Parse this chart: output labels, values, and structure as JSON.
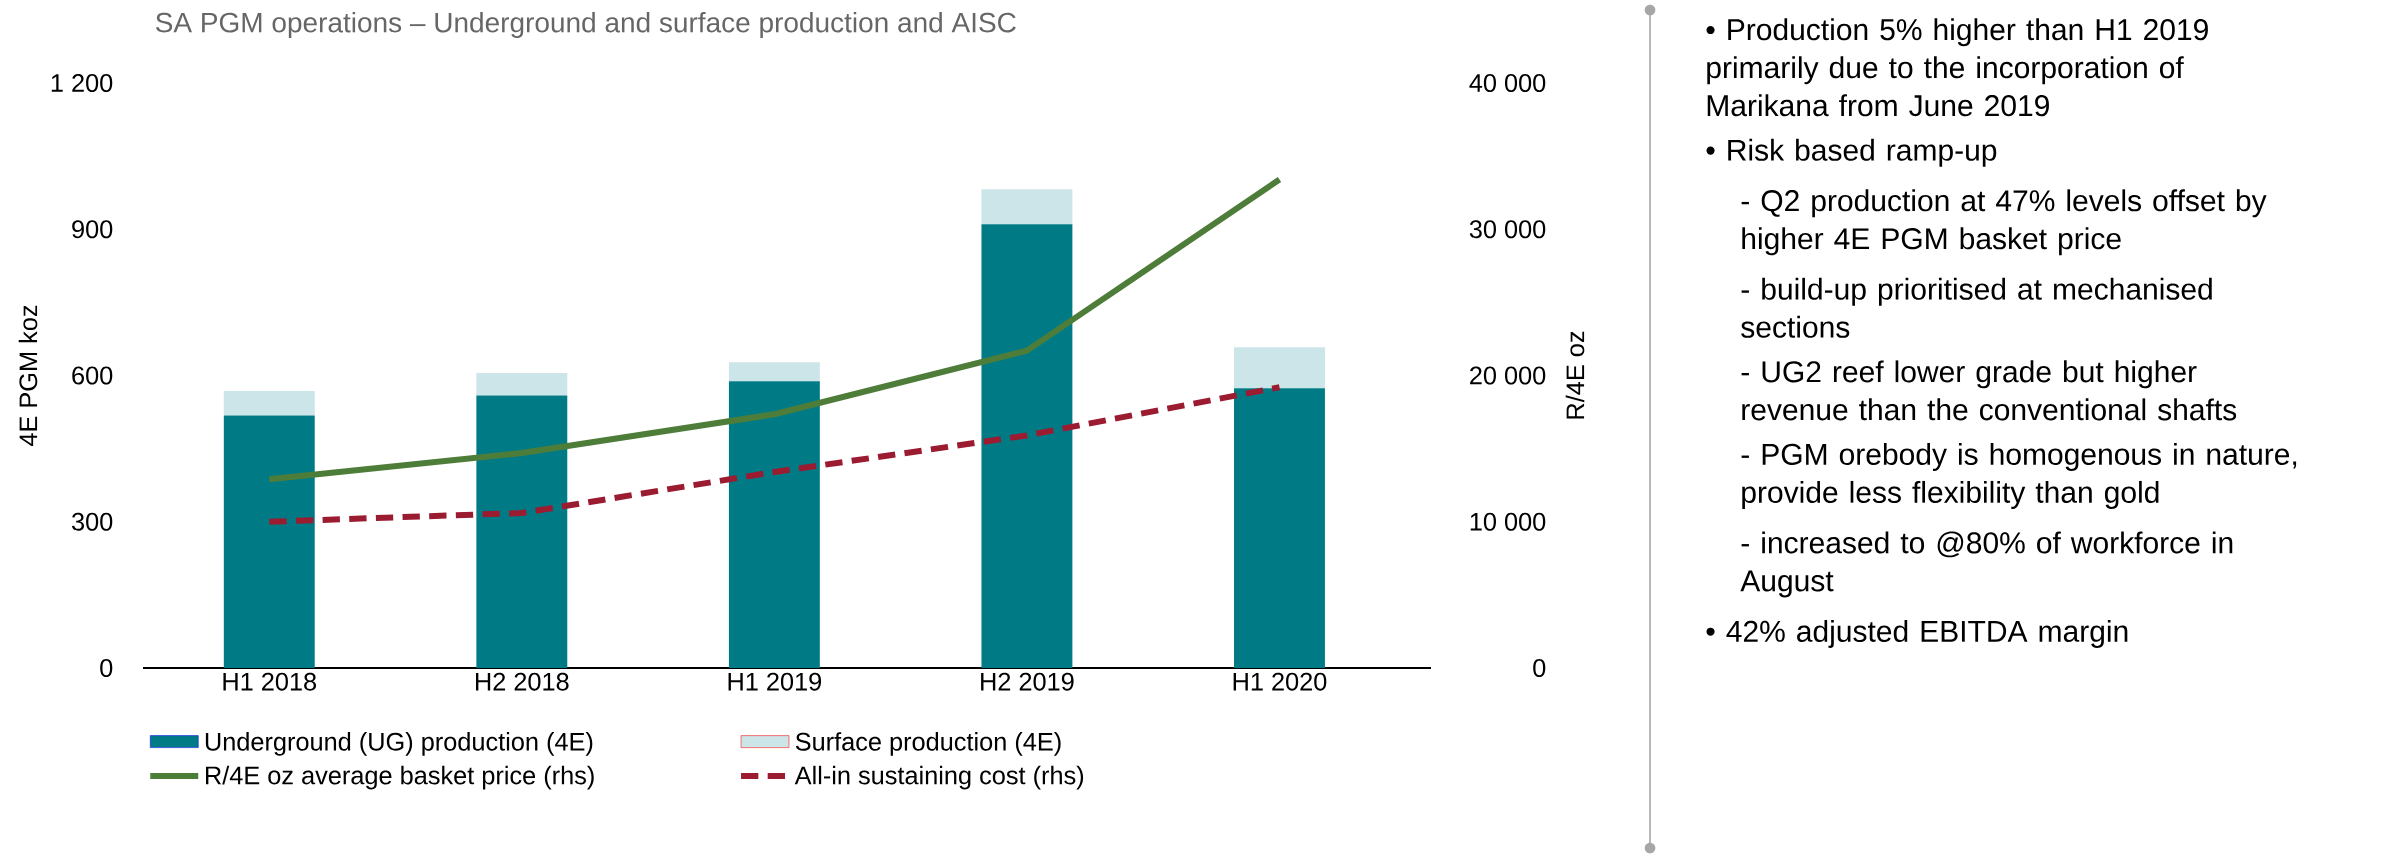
{
  "chart_data": {
    "type": "bar",
    "stacked": true,
    "title": "SA PGM operations – Underground and surface production and AISC",
    "ylabel": "4E PGM koz",
    "y2label": "R/4E oz",
    "categories": [
      "H1 2018",
      "H2 2018",
      "H1 2019",
      "H2 2019",
      "H1 2020"
    ],
    "series": [
      {
        "name": "Underground (UG) production (4E)",
        "color": "#007b86",
        "values": [
          518,
          559,
          588,
          910,
          574
        ]
      },
      {
        "name": "Surface production (4E)",
        "color": "#cce5e8",
        "values": [
          50,
          46,
          39,
          72,
          84
        ]
      },
      {
        "name": "R/4E oz average basket price (rhs)",
        "type": "line",
        "axis": "y2",
        "color": "#4e7d3a",
        "line_style": "solid",
        "values": [
          12900,
          14700,
          17350,
          21700,
          33400
        ]
      },
      {
        "name": "All-in sustaining cost (rhs)",
        "type": "line",
        "axis": "y2",
        "color": "#9b1b30",
        "line_style": "dashed",
        "values": [
          10000,
          10600,
          13400,
          15900,
          19200
        ]
      }
    ],
    "ylim": [
      0,
      1200
    ],
    "yticks": [
      0,
      300,
      600,
      900,
      {
        "value": 1200,
        "label": "1 200"
      }
    ],
    "y2lim": [
      0,
      40000
    ],
    "y2ticks": [
      0,
      {
        "value": 10000,
        "label": "10 000"
      },
      {
        "value": 20000,
        "label": "20 000"
      },
      {
        "value": 30000,
        "label": "30 000"
      },
      {
        "value": 40000,
        "label": "40 000"
      }
    ],
    "legend": "bottom",
    "annotations": [
      "• Production 5% higher than H1 2019 primarily due to the incorporation of Marikana from June 2019",
      "• Risk based ramp-up",
      "- Q2 production at 47% levels offset by higher 4E PGM basket price",
      "- build-up prioritised at mechanised sections",
      "- UG2 reef lower grade but higher revenue than the conventional shafts",
      "- PGM orebody is homogenous in nature, provide less flexibility than gold",
      "- increased to @80% of workforce in August",
      "• 42% adjusted EBITDA margin"
    ]
  }
}
